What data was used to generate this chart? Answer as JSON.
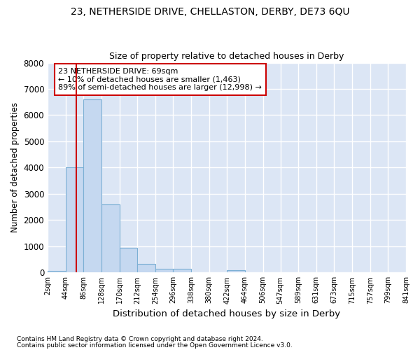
{
  "title": "23, NETHERSIDE DRIVE, CHELLASTON, DERBY, DE73 6QU",
  "subtitle": "Size of property relative to detached houses in Derby",
  "xlabel": "Distribution of detached houses by size in Derby",
  "ylabel": "Number of detached properties",
  "footnote1": "Contains HM Land Registry data © Crown copyright and database right 2024.",
  "footnote2": "Contains public sector information licensed under the Open Government Licence v3.0.",
  "annotation_line1": "23 NETHERSIDE DRIVE: 69sqm",
  "annotation_line2": "← 10% of detached houses are smaller (1,463)",
  "annotation_line3": "89% of semi-detached houses are larger (12,998) →",
  "bar_edges": [
    2,
    44,
    86,
    128,
    170,
    212,
    254,
    296,
    338,
    380,
    422,
    464,
    506,
    547,
    589,
    631,
    673,
    715,
    757,
    799,
    841
  ],
  "bar_heights": [
    50,
    4000,
    6600,
    2600,
    950,
    325,
    150,
    150,
    0,
    0,
    75,
    0,
    0,
    0,
    0,
    0,
    0,
    0,
    0,
    0
  ],
  "bar_color": "#c5d8f0",
  "bar_edge_color": "#7bafd4",
  "property_line_x": 69,
  "property_line_color": "#cc0000",
  "annotation_box_color": "#ffffff",
  "annotation_box_edge": "#cc0000",
  "fig_bg_color": "#ffffff",
  "plot_bg_color": "#dce6f5",
  "grid_color": "#ffffff",
  "ylim": [
    0,
    8000
  ],
  "yticks": [
    0,
    1000,
    2000,
    3000,
    4000,
    5000,
    6000,
    7000,
    8000
  ],
  "tick_labels": [
    "2sqm",
    "44sqm",
    "86sqm",
    "128sqm",
    "170sqm",
    "212sqm",
    "254sqm",
    "296sqm",
    "338sqm",
    "380sqm",
    "422sqm",
    "464sqm",
    "506sqm",
    "547sqm",
    "589sqm",
    "631sqm",
    "673sqm",
    "715sqm",
    "757sqm",
    "799sqm",
    "841sqm"
  ]
}
